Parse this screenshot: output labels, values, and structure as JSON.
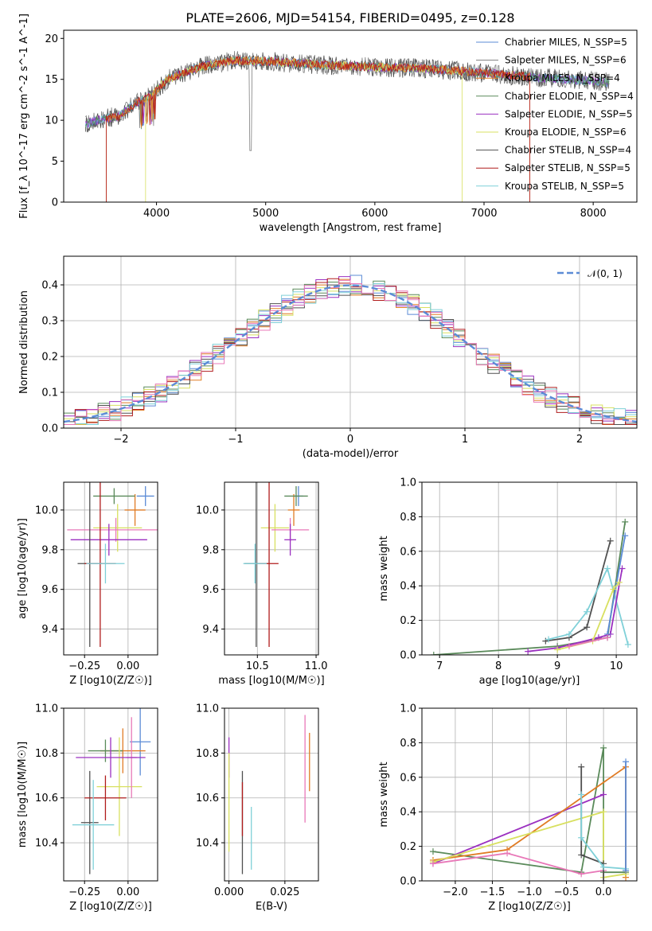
{
  "figure": {
    "title": "PLATE=2606, MJD=54154, FIBERID=0495, z=0.128"
  },
  "colors": {
    "Chabrier MILES": "#5b8bd6",
    "Salpeter MILES": "#7f7f7f",
    "Kroupa MILES": "#e07b24",
    "Chabrier ELODIE": "#5a8a5a",
    "Salpeter ELODIE": "#9b30c0",
    "Kroupa ELODIE": "#d8e060",
    "Chabrier STELIB": "#505050",
    "Salpeter STELIB": "#b01c1c",
    "Kroupa STELIB": "#7fd0d8",
    "pink": "#e878b8",
    "gauss": "#5b8bd6",
    "grid": "#b0b0b0"
  },
  "chart_data": [
    {
      "id": "spectrum",
      "type": "line",
      "xlabel": "wavelength [Angstrom, rest frame]",
      "ylabel": "Flux [f_λ 10^-17 erg cm^-2 s^-1 A^-1]",
      "xlim": [
        3150,
        8400
      ],
      "ylim": [
        0,
        21
      ],
      "xticks": [
        "4000",
        "5000",
        "6000",
        "7000",
        "8000"
      ],
      "yticks": [
        "0",
        "5",
        "10",
        "15",
        "20"
      ],
      "grid": false,
      "legend_position": "right",
      "legend": [
        "Chabrier MILES, N_SSP=5",
        "Salpeter MILES, N_SSP=6",
        "Kroupa MILES, N_SSP=4",
        "Chabrier ELODIE, N_SSP=4",
        "Salpeter ELODIE, N_SSP=5",
        "Kroupa ELODIE, N_SSP=6",
        "Chabrier STELIB, N_SSP=4",
        "Salpeter STELIB, N_SSP=5",
        "Kroupa STELIB, N_SSP=5"
      ],
      "continuum_points": [
        [
          3350,
          9.5
        ],
        [
          3500,
          10.2
        ],
        [
          3650,
          10.5
        ],
        [
          3800,
          12
        ],
        [
          3950,
          13
        ],
        [
          4100,
          15
        ],
        [
          4400,
          16.5
        ],
        [
          4700,
          17.3
        ],
        [
          5000,
          17.2
        ],
        [
          5500,
          16.8
        ],
        [
          6000,
          16.5
        ],
        [
          6500,
          16.3
        ],
        [
          7000,
          15.8
        ],
        [
          7500,
          15.2
        ],
        [
          8000,
          14.8
        ],
        [
          8150,
          14.6
        ]
      ],
      "model_extents": [
        {
          "series": "Kroupa MILES",
          "x": [
            3540,
            7420
          ]
        },
        {
          "series": "Kroupa ELODIE",
          "x": [
            3900,
            6800
          ]
        },
        {
          "series": "Salpeter STELIB",
          "x": [
            3540,
            7420
          ]
        }
      ]
    },
    {
      "id": "residuals",
      "type": "histogram",
      "xlabel": "(data-model)/error",
      "ylabel": "Normed distribution",
      "xlim": [
        -2.5,
        2.5
      ],
      "ylim": [
        0,
        0.48
      ],
      "xticks": [
        "−2",
        "−1",
        "0",
        "1",
        "2"
      ],
      "yticks": [
        "0.0",
        "0.1",
        "0.2",
        "0.3",
        "0.4"
      ],
      "grid": true,
      "legend": [
        "𝒩(0, 1)"
      ],
      "legend_position": "top-right",
      "bin_width": 0.1,
      "gauss": {
        "mu": 0,
        "sigma": 1
      }
    },
    {
      "id": "age-vs-Z",
      "type": "errorbar",
      "xlabel": "Z [log10(Z/Z☉)]",
      "ylabel": "age  [log10(age/yr)]",
      "xlim": [
        -0.37,
        0.17
      ],
      "ylim": [
        9.27,
        10.14
      ],
      "xticks": [
        "−0.25",
        "0.00"
      ],
      "yticks": [
        "9.4",
        "9.6",
        "9.8",
        "10.0"
      ],
      "grid": true,
      "points": [
        {
          "series": "Chabrier MILES",
          "x": 0.1,
          "xerr": 0.05,
          "y": 10.07,
          "yerr": 0.05
        },
        {
          "series": "Kroupa MILES",
          "x": 0.04,
          "xerr": 0.06,
          "y": 10.0,
          "yerr": 0.08
        },
        {
          "series": "Chabrier ELODIE",
          "x": -0.08,
          "xerr": 0.12,
          "y": 10.07,
          "yerr": 0.04
        },
        {
          "series": "Kroupa ELODIE",
          "x": -0.06,
          "xerr": 0.14,
          "y": 9.91,
          "yerr": 0.12
        },
        {
          "series": "pink",
          "x": -0.07,
          "xerr": 0.28,
          "y": 9.9,
          "yerr": 0.06
        },
        {
          "series": "Salpeter ELODIE",
          "x": -0.11,
          "xerr": 0.22,
          "y": 9.85,
          "yerr": 0.08
        },
        {
          "series": "Chabrier STELIB",
          "x": -0.22,
          "xerr": 0.07,
          "y": 9.73,
          "yerr": 0.42
        },
        {
          "series": "Salpeter STELIB",
          "x": -0.16,
          "xerr": 0.09,
          "y": 9.73,
          "yerr": 0.42
        },
        {
          "series": "Kroupa STELIB",
          "x": -0.13,
          "xerr": 0.11,
          "y": 9.73,
          "yerr": 0.1
        }
      ]
    },
    {
      "id": "age-vs-mass",
      "type": "errorbar",
      "xlabel": "mass [log10(M/M☉)]",
      "ylabel": "",
      "xlim": [
        10.22,
        11.02
      ],
      "ylim": [
        9.27,
        10.14
      ],
      "xticks": [
        "10.5",
        "11.0"
      ],
      "yticks": [
        "9.4",
        "9.6",
        "9.8",
        "10.0"
      ],
      "grid": true,
      "points": [
        {
          "series": "Chabrier MILES",
          "x": 10.85,
          "xerr": 0.04,
          "y": 10.07,
          "yerr": 0.05
        },
        {
          "series": "Kroupa MILES",
          "x": 10.81,
          "xerr": 0.05,
          "y": 10.0,
          "yerr": 0.08
        },
        {
          "series": "Chabrier ELODIE",
          "x": 10.83,
          "xerr": 0.1,
          "y": 10.07,
          "yerr": 0.05
        },
        {
          "series": "Kroupa ELODIE",
          "x": 10.65,
          "xerr": 0.12,
          "y": 9.91,
          "yerr": 0.12
        },
        {
          "series": "pink",
          "x": 10.78,
          "xerr": 0.16,
          "y": 9.9,
          "yerr": 0.06
        },
        {
          "series": "Salpeter ELODIE",
          "x": 10.78,
          "xerr": 0.05,
          "y": 9.85,
          "yerr": 0.08
        },
        {
          "series": "Chabrier STELIB",
          "x": 10.49,
          "xerr": 0.1,
          "y": 9.73,
          "yerr": 0.42
        },
        {
          "series": "Salpeter STELIB",
          "x": 10.6,
          "xerr": 0.08,
          "y": 9.73,
          "yerr": 0.42
        },
        {
          "series": "Kroupa STELIB",
          "x": 10.48,
          "xerr": 0.1,
          "y": 9.73,
          "yerr": 0.1
        }
      ]
    },
    {
      "id": "weight-vs-age",
      "type": "line",
      "xlabel": "age  [log10(age/yr)]",
      "ylabel": "mass weight",
      "xlim": [
        6.7,
        10.35
      ],
      "ylim": [
        0,
        1.0
      ],
      "xticks": [
        "7",
        "8",
        "9",
        "10"
      ],
      "yticks": [
        "0.0",
        "0.2",
        "0.4",
        "0.6",
        "0.8",
        "1.0"
      ],
      "grid": true,
      "series": [
        {
          "name": "Chabrier STELIB",
          "x": [
            8.8,
            9.2,
            9.5,
            9.9
          ],
          "y": [
            0.08,
            0.1,
            0.16,
            0.66
          ]
        },
        {
          "name": "Kroupa STELIB",
          "x": [
            8.85,
            9.2,
            9.5,
            9.85,
            10.2
          ],
          "y": [
            0.09,
            0.12,
            0.25,
            0.5,
            0.06
          ]
        },
        {
          "name": "Chabrier ELODIE",
          "x": [
            6.9,
            9.0,
            9.85,
            10.15
          ],
          "y": [
            0.0,
            0.05,
            0.1,
            0.77
          ]
        },
        {
          "name": "Salpeter ELODIE",
          "x": [
            8.5,
            9.0,
            9.7,
            9.9,
            10.1
          ],
          "y": [
            0.02,
            0.04,
            0.1,
            0.12,
            0.5
          ]
        },
        {
          "name": "Chabrier MILES",
          "x": [
            9.85,
            10.15
          ],
          "y": [
            0.12,
            0.69
          ]
        },
        {
          "name": "Kroupa ELODIE",
          "x": [
            9.0,
            9.6,
            9.95,
            10.05
          ],
          "y": [
            0.03,
            0.08,
            0.38,
            0.42
          ]
        },
        {
          "name": "pink",
          "x": [
            9.2,
            9.85
          ],
          "y": [
            0.05,
            0.1
          ]
        }
      ]
    },
    {
      "id": "mass-vs-Z",
      "type": "errorbar",
      "xlabel": "Z [log10(Z/Z☉)]",
      "ylabel": "mass [log10(M/M☉)]",
      "xlim": [
        -0.37,
        0.17
      ],
      "ylim": [
        10.23,
        11.0
      ],
      "xticks": [
        "−0.25",
        "0.00"
      ],
      "yticks": [
        "10.4",
        "10.6",
        "10.8",
        "11.0"
      ],
      "grid": true,
      "points": [
        {
          "series": "Chabrier MILES",
          "x": 0.07,
          "xerr": 0.06,
          "y": 10.85,
          "yerr": 0.15
        },
        {
          "series": "Kroupa MILES",
          "x": -0.03,
          "xerr": 0.13,
          "y": 10.81,
          "yerr": 0.1
        },
        {
          "series": "Chabrier ELODIE",
          "x": -0.13,
          "xerr": 0.1,
          "y": 10.81,
          "yerr": 0.05
        },
        {
          "series": "Kroupa ELODIE",
          "x": -0.05,
          "xerr": 0.13,
          "y": 10.65,
          "yerr": 0.22
        },
        {
          "series": "pink",
          "x": 0.02,
          "xerr": 0.03,
          "y": 10.78,
          "yerr": 0.18
        },
        {
          "series": "Salpeter ELODIE",
          "x": -0.1,
          "xerr": 0.2,
          "y": 10.78,
          "yerr": 0.09
        },
        {
          "series": "Chabrier STELIB",
          "x": -0.22,
          "xerr": 0.05,
          "y": 10.49,
          "yerr": 0.23
        },
        {
          "series": "Salpeter STELIB",
          "x": -0.13,
          "xerr": 0.12,
          "y": 10.6,
          "yerr": 0.1
        },
        {
          "series": "Kroupa STELIB",
          "x": -0.2,
          "xerr": 0.12,
          "y": 10.48,
          "yerr": 0.2
        }
      ]
    },
    {
      "id": "mass-vs-EBV",
      "type": "errorbar",
      "xlabel": "E(B-V)",
      "ylabel": "",
      "xlim": [
        -0.002,
        0.04
      ],
      "ylim": [
        10.23,
        11.0
      ],
      "xticks": [
        "0.000",
        "0.025"
      ],
      "yticks": [
        "10.4",
        "10.6",
        "10.8",
        "11.0"
      ],
      "grid": true,
      "points": [
        {
          "series": "Salpeter ELODIE",
          "x": 0.0,
          "y": 10.78,
          "yerr": 0.09
        },
        {
          "series": "Kroupa ELODIE",
          "x": 0.0,
          "y": 10.58,
          "yerr": 0.22
        },
        {
          "series": "Chabrier STELIB",
          "x": 0.006,
          "y": 10.49,
          "yerr": 0.23
        },
        {
          "series": "Salpeter STELIB",
          "x": 0.006,
          "y": 10.55,
          "yerr": 0.12
        },
        {
          "series": "Kroupa STELIB",
          "x": 0.01,
          "y": 10.42,
          "yerr": 0.14
        },
        {
          "series": "pink",
          "x": 0.034,
          "y": 10.73,
          "yerr": 0.24
        },
        {
          "series": "Kroupa MILES",
          "x": 0.036,
          "y": 10.76,
          "yerr": 0.13
        }
      ]
    },
    {
      "id": "weight-vs-Z",
      "type": "line",
      "xlabel": "Z [log10(Z/Z☉)]",
      "ylabel": "mass weight",
      "xlim": [
        -2.45,
        0.45
      ],
      "ylim": [
        0,
        1.0
      ],
      "xticks": [
        "−2.0",
        "−1.5",
        "−1.0",
        "−0.5",
        "0.0"
      ],
      "yticks": [
        "0.0",
        "0.2",
        "0.4",
        "0.6",
        "0.8",
        "1.0"
      ],
      "grid": true,
      "series": [
        {
          "name": "Chabrier ELODIE",
          "x": [
            -2.3,
            -0.3,
            0.0,
            0.0,
            0.3
          ],
          "y": [
            0.17,
            0.05,
            0.77,
            0.05,
            0.05
          ]
        },
        {
          "name": "Salpeter ELODIE",
          "x": [
            -2.3,
            0.0
          ],
          "y": [
            0.1,
            0.5
          ]
        },
        {
          "name": "Kroupa MILES",
          "x": [
            -2.3,
            -1.3,
            0.3,
            0.3
          ],
          "y": [
            0.12,
            0.18,
            0.66,
            0.02
          ]
        },
        {
          "name": "Kroupa ELODIE",
          "x": [
            -2.3,
            0.0,
            0.0,
            0.3
          ],
          "y": [
            0.11,
            0.4,
            0.02,
            0.04
          ]
        },
        {
          "name": "pink",
          "x": [
            -2.3,
            -1.3,
            -0.3,
            0.0
          ],
          "y": [
            0.1,
            0.16,
            0.04,
            0.06
          ]
        },
        {
          "name": "Chabrier STELIB",
          "x": [
            -0.3,
            -0.3,
            0.0,
            0.0
          ],
          "y": [
            0.66,
            0.15,
            0.1,
            0.0
          ]
        },
        {
          "name": "Kroupa STELIB",
          "x": [
            -0.3,
            -0.3,
            0.0,
            0.3
          ],
          "y": [
            0.5,
            0.25,
            0.08,
            0.07
          ]
        },
        {
          "name": "Chabrier MILES",
          "x": [
            0.3,
            0.3
          ],
          "y": [
            0.69,
            0.06
          ]
        }
      ]
    }
  ]
}
